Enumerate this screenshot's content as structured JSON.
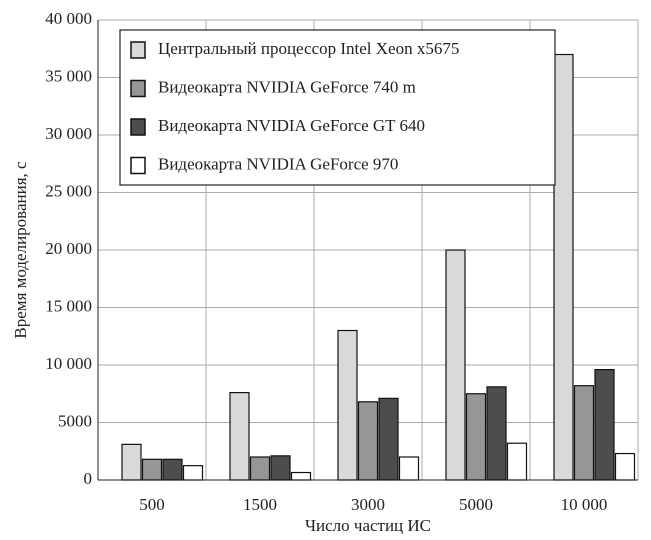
{
  "chart_data": {
    "type": "bar",
    "ylabel": "Время моделирования, с",
    "xlabel": "Число частиц ИС",
    "categories": [
      "500",
      "1500",
      "3000",
      "5000",
      "10 000"
    ],
    "series": [
      {
        "name": "Центральный процессор Intel Xeon x5675",
        "color": "#d9d9d9",
        "values": [
          3100,
          7600,
          13000,
          20000,
          37000
        ]
      },
      {
        "name": "Видеокарта NVIDIA GeForce 740 m",
        "color": "#969696",
        "values": [
          1800,
          2000,
          6800,
          7500,
          8200
        ]
      },
      {
        "name": "Видеокарта NVIDIA GeForce GT 640",
        "color": "#4d4d4d",
        "values": [
          1800,
          2100,
          7100,
          8100,
          9600
        ]
      },
      {
        "name": "Видеокарта NVIDIA GeForce 970",
        "color": "#ffffff",
        "values": [
          1250,
          650,
          2000,
          3200,
          2300
        ]
      }
    ],
    "ylim": [
      0,
      40000
    ],
    "yticks": [
      0,
      5000,
      {
        "value": 10000,
        "label": "10 000"
      },
      {
        "value": 15000,
        "label": "15 000"
      },
      {
        "value": 20000,
        "label": "20 000"
      },
      {
        "value": 25000,
        "label": "25 000"
      },
      {
        "value": 30000,
        "label": "30 000"
      },
      {
        "value": 35000,
        "label": "35 000"
      },
      {
        "value": 40000,
        "label": "40 000"
      }
    ],
    "grid": true,
    "legend": "upper-left"
  }
}
